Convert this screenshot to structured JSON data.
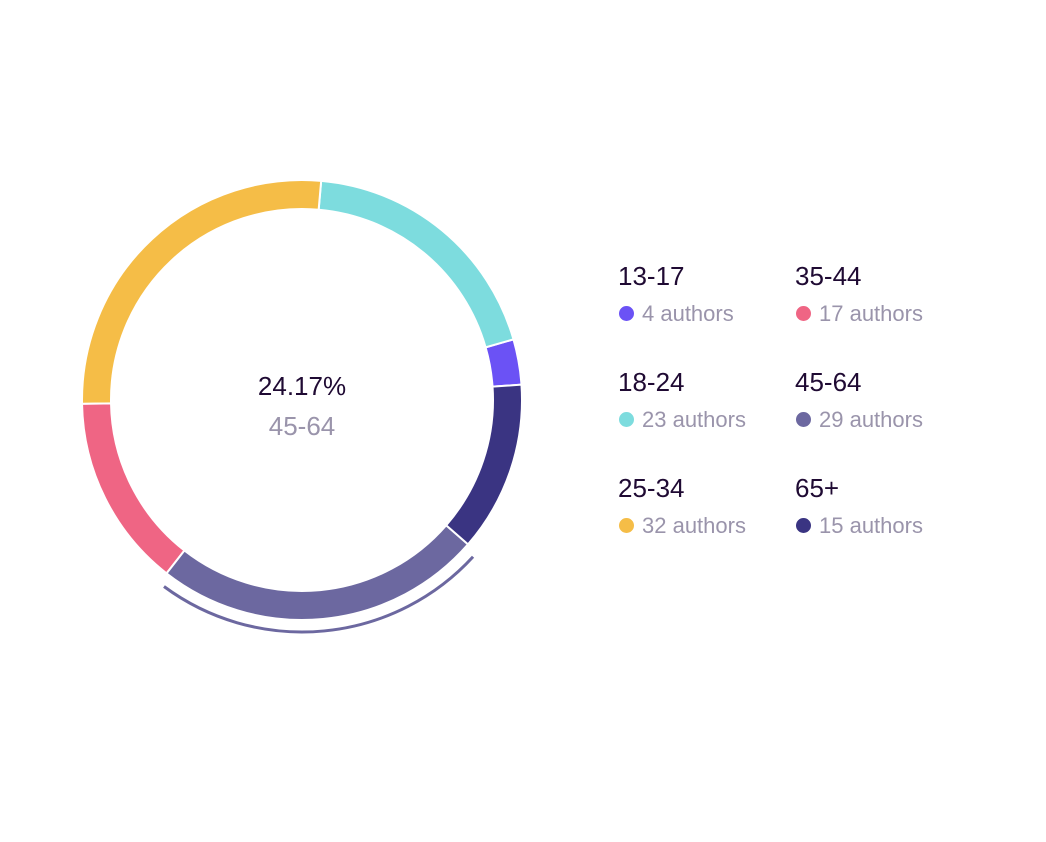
{
  "chart_data": {
    "type": "pie",
    "style": "donut",
    "categories": [
      "13-17",
      "18-24",
      "25-34",
      "35-44",
      "45-64",
      "65+"
    ],
    "values": [
      4,
      23,
      32,
      17,
      29,
      15
    ],
    "unit": "authors",
    "colors": [
      "#6b52f5",
      "#7ddcde",
      "#f5bd47",
      "#ef6584",
      "#6c68a0",
      "#3a3482"
    ],
    "highlighted": "45-64",
    "legend_position": "right",
    "center": {
      "value": "24.17%",
      "label": "45-64"
    }
  },
  "legend": [
    {
      "label": "13-17",
      "count": "4 authors"
    },
    {
      "label": "18-24",
      "count": "23 authors"
    },
    {
      "label": "25-34",
      "count": "32 authors"
    },
    {
      "label": "35-44",
      "count": "17 authors"
    },
    {
      "label": "45-64",
      "count": "29 authors"
    },
    {
      "label": "65+",
      "count": "15 authors"
    }
  ]
}
